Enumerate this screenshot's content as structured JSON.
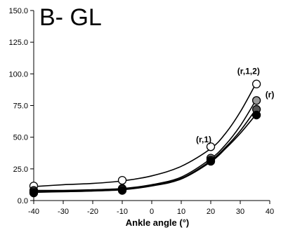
{
  "chart_data": {
    "type": "line",
    "title": "B- GL",
    "xlabel": "Ankle angle (°)",
    "ylabel": "",
    "xlim": [
      -40,
      40
    ],
    "ylim": [
      0,
      150
    ],
    "xticks": [
      "-40",
      "-30",
      "-20",
      "-10",
      "0",
      "10",
      "20",
      "30",
      "40"
    ],
    "yticks": [
      "0.0",
      "25.0",
      "50.0",
      "75.0",
      "100.0",
      "125.0",
      "150.0"
    ],
    "grid": false,
    "series": [
      {
        "marker_fill": "#ffffff",
        "curve": [
          [
            -40,
            11
          ],
          [
            -30,
            12.5
          ],
          [
            -20,
            13.5
          ],
          [
            -10,
            15.5
          ],
          [
            0,
            19.5
          ],
          [
            10,
            27
          ],
          [
            20,
            41
          ],
          [
            25,
            53
          ],
          [
            30,
            70
          ],
          [
            35,
            91
          ]
        ],
        "points": [
          [
            -40,
            11.5
          ],
          [
            -10,
            16
          ],
          [
            20,
            42.5
          ],
          [
            35.5,
            92
          ]
        ]
      },
      {
        "marker_fill": "#999999",
        "curve": [
          [
            -40,
            8
          ],
          [
            -30,
            8
          ],
          [
            -20,
            8.5
          ],
          [
            -10,
            9.5
          ],
          [
            0,
            12.5
          ],
          [
            10,
            18.5
          ],
          [
            20,
            33
          ],
          [
            25,
            44
          ],
          [
            30,
            59
          ],
          [
            35,
            78
          ]
        ],
        "points": [
          [
            -40,
            8
          ],
          [
            -10,
            9.5
          ],
          [
            20,
            33.5
          ],
          [
            35.5,
            79
          ]
        ]
      },
      {
        "marker_fill": "#555555",
        "curve": [
          [
            -40,
            7
          ],
          [
            -30,
            7.5
          ],
          [
            -20,
            8
          ],
          [
            -10,
            9
          ],
          [
            0,
            12
          ],
          [
            10,
            17.5
          ],
          [
            20,
            31.5
          ],
          [
            25,
            42
          ],
          [
            30,
            55
          ],
          [
            35,
            71
          ]
        ],
        "points": [
          [
            -40,
            7
          ],
          [
            -10,
            9
          ],
          [
            20,
            32
          ],
          [
            35.5,
            72
          ]
        ]
      },
      {
        "marker_fill": "#000000",
        "curve": [
          [
            -40,
            6.5
          ],
          [
            -30,
            7
          ],
          [
            -20,
            7.5
          ],
          [
            -10,
            8.5
          ],
          [
            0,
            11.5
          ],
          [
            10,
            17
          ],
          [
            20,
            30.5
          ],
          [
            25,
            41
          ],
          [
            30,
            53
          ],
          [
            35,
            67
          ]
        ],
        "points": [
          [
            -40,
            6
          ],
          [
            -10,
            8
          ],
          [
            20,
            31
          ],
          [
            35.5,
            67.5
          ]
        ]
      }
    ],
    "annotations": [
      {
        "text": "(r,1,2)",
        "x": 29,
        "y": 100
      },
      {
        "text": "(r)",
        "x": 38.5,
        "y": 81.5
      },
      {
        "text": "(r,1)",
        "x": 15,
        "y": 46
      }
    ]
  }
}
